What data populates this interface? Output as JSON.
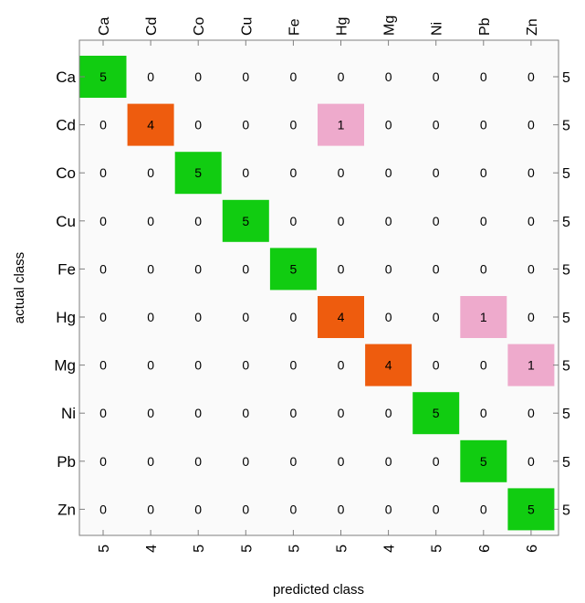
{
  "chart_data": {
    "type": "heatmap",
    "title": "",
    "xlabel": "predicted class",
    "ylabel": "actual class",
    "x_categories": [
      "Ca",
      "Cd",
      "Co",
      "Cu",
      "Fe",
      "Hg",
      "Mg",
      "Ni",
      "Pb",
      "Zn"
    ],
    "y_categories": [
      "Ca",
      "Cd",
      "Co",
      "Cu",
      "Fe",
      "Hg",
      "Mg",
      "Ni",
      "Pb",
      "Zn"
    ],
    "matrix": [
      [
        5,
        0,
        0,
        0,
        0,
        0,
        0,
        0,
        0,
        0
      ],
      [
        0,
        4,
        0,
        0,
        0,
        1,
        0,
        0,
        0,
        0
      ],
      [
        0,
        0,
        5,
        0,
        0,
        0,
        0,
        0,
        0,
        0
      ],
      [
        0,
        0,
        0,
        5,
        0,
        0,
        0,
        0,
        0,
        0
      ],
      [
        0,
        0,
        0,
        0,
        5,
        0,
        0,
        0,
        0,
        0
      ],
      [
        0,
        0,
        0,
        0,
        0,
        4,
        0,
        0,
        1,
        0
      ],
      [
        0,
        0,
        0,
        0,
        0,
        0,
        4,
        0,
        0,
        1
      ],
      [
        0,
        0,
        0,
        0,
        0,
        0,
        0,
        5,
        0,
        0
      ],
      [
        0,
        0,
        0,
        0,
        0,
        0,
        0,
        0,
        5,
        0
      ],
      [
        0,
        0,
        0,
        0,
        0,
        0,
        0,
        0,
        0,
        5
      ]
    ],
    "row_totals": [
      5,
      5,
      5,
      5,
      5,
      5,
      5,
      5,
      5,
      5
    ],
    "column_totals": [
      5,
      4,
      5,
      5,
      5,
      5,
      4,
      5,
      6,
      6
    ],
    "colors": {
      "correct_full": "#11cc11",
      "correct_partial": "#ee5c0e",
      "misclassified": "#eeaacc",
      "empty": "#fafafa",
      "frame": "#7f7f7f",
      "text": "#000000"
    },
    "grid": false
  }
}
